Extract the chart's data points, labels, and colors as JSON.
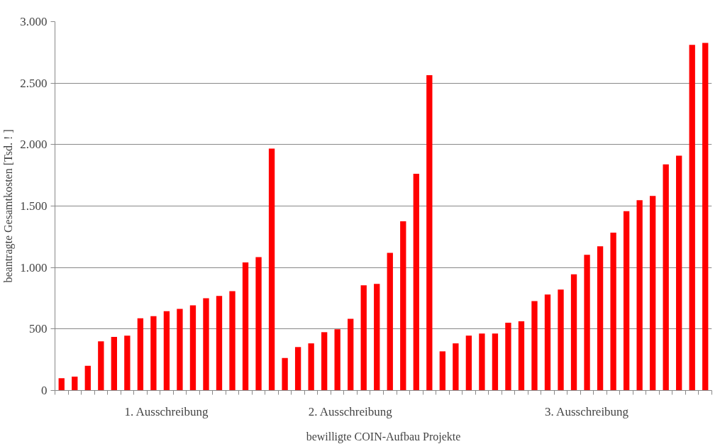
{
  "chart_data": {
    "type": "bar",
    "xlabel": "bewilligte COIN-Aufbau Projekte",
    "ylabel": "beantragte Gesamtkosten [Tsd. ! ]",
    "categories": [
      null,
      null,
      null,
      null,
      null,
      null,
      null,
      null,
      "1. Ausschreibung",
      null,
      null,
      null,
      null,
      null,
      null,
      null,
      null,
      null,
      null,
      null,
      null,
      null,
      "2. Ausschreibung",
      null,
      null,
      null,
      null,
      null,
      null,
      null,
      null,
      null,
      null,
      null,
      null,
      null,
      null,
      null,
      null,
      null,
      "3. Ausschreibung",
      null,
      null,
      null,
      null,
      null,
      null,
      null,
      null,
      null
    ],
    "values": [
      100,
      112,
      201,
      400,
      435,
      446,
      587,
      605,
      645,
      664,
      692,
      750,
      769,
      808,
      1042,
      1084,
      1967,
      264,
      353,
      383,
      474,
      498,
      582,
      855,
      867,
      1119,
      1376,
      1762,
      2565,
      318,
      383,
      446,
      463,
      463,
      551,
      563,
      727,
      780,
      820,
      944,
      1103,
      1173,
      1283,
      1458,
      1547,
      1582,
      1839,
      1909,
      2811,
      2827
    ],
    "color": "#ff0000",
    "ylim": [
      0,
      3000
    ],
    "yticks": [
      0,
      500,
      {
        "value": 1000,
        "label": "1.000"
      },
      {
        "value": 1500,
        "label": "1.500"
      },
      {
        "value": 2000,
        "label": "2.000"
      },
      {
        "value": 2500,
        "label": "2.500"
      },
      {
        "value": 3000,
        "label": "3.000"
      }
    ],
    "grid": "y"
  }
}
